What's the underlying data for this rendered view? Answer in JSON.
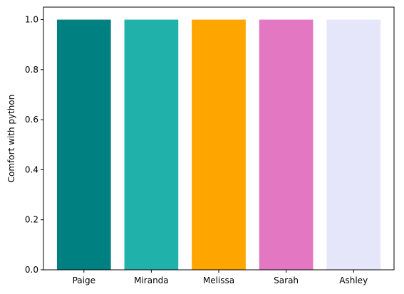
{
  "chart_data": {
    "type": "bar",
    "title": "",
    "xlabel": "",
    "ylabel": "Comfort with python",
    "categories": [
      "Paige",
      "Miranda",
      "Melissa",
      "Sarah",
      "Ashley"
    ],
    "values": [
      1.0,
      1.0,
      1.0,
      1.0,
      1.0
    ],
    "colors": [
      "#008080",
      "#20b2aa",
      "#ffa500",
      "#e377c2",
      "#e6e6fa"
    ],
    "ylim": [
      0,
      1.05
    ],
    "yticks": [
      "0.0",
      "0.2",
      "0.4",
      "0.6",
      "0.8",
      "1.0"
    ],
    "grid": false,
    "legend": "none"
  }
}
